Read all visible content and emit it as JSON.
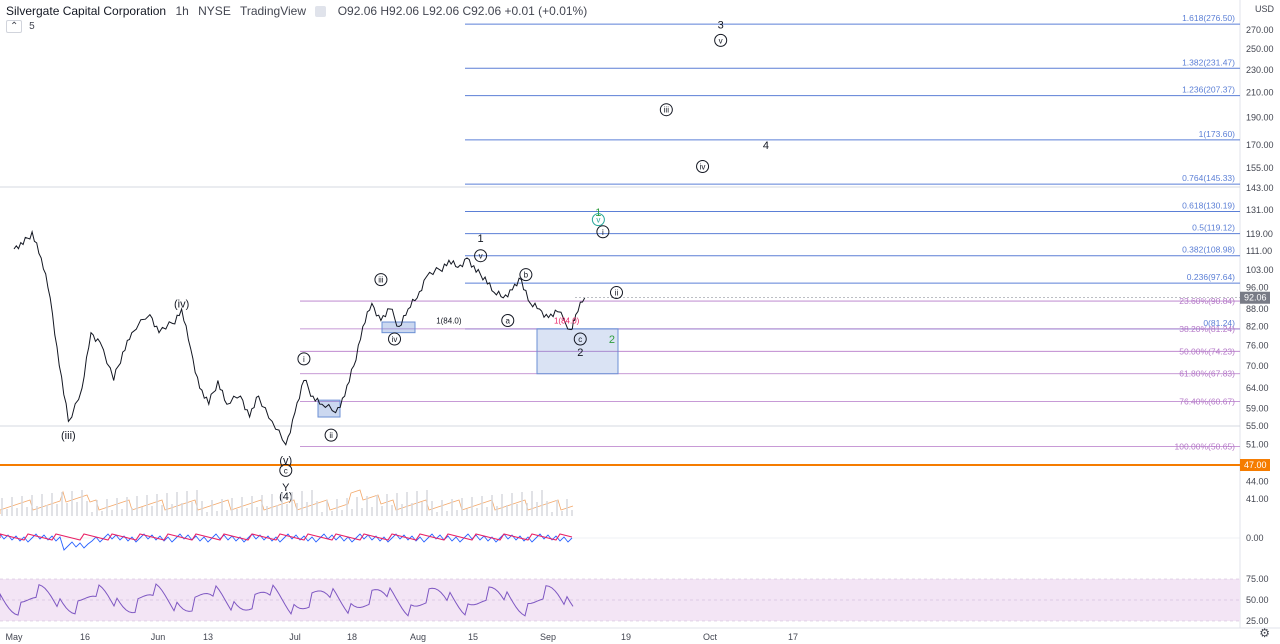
{
  "header": {
    "symbol": "Silvergate Capital Corporation",
    "interval": "1h",
    "exchange": "NYSE",
    "source": "TradingView",
    "ohlc": "O92.06 H92.06 L92.06 C92.06 +0.01 (+0.01%)",
    "indicator_count": "5",
    "currency": "USD"
  },
  "colors": {
    "price": "#131722",
    "fib_blue": "#5b7fd6",
    "fib_purple": "#b579c8",
    "orange": "#f57c00",
    "box": "#6b8fd4",
    "wave_green": "#2e9e3e",
    "wave_teal": "#26a69a",
    "volume": "#f2a86a",
    "indicator_red": "#e91e63",
    "indicator_blue": "#2962ff",
    "rsi": "#7e57c2",
    "rsi_band": "#f3e5f5",
    "price_tag": "#787b86"
  },
  "chart_data": {
    "type": "line",
    "title": "Silvergate Capital Corporation · 1h · NYSE",
    "x_labels": [
      "May",
      "16",
      "Jun",
      "13",
      "Jul",
      "18",
      "Aug",
      "15",
      "Sep",
      "19",
      "Oct",
      "17"
    ],
    "y_ticks": [
      "270.00",
      "250.00",
      "230.00",
      "210.00",
      "190.00",
      "170.00",
      "155.00",
      "143.00",
      "131.00",
      "119.00",
      "111.00",
      "103.00",
      "96.00",
      "88.00",
      "82.00",
      "76.00",
      "70.00",
      "64.00",
      "59.00",
      "55.00",
      "51.00",
      "47.00",
      "44.00",
      "41.00"
    ],
    "y_range": [
      38,
      285
    ],
    "log_scale": true,
    "price_series": [
      {
        "x": "May 1",
        "y": 112
      },
      {
        "x": "May 3",
        "y": 114
      },
      {
        "x": "May 5",
        "y": 120
      },
      {
        "x": "May 7",
        "y": 108
      },
      {
        "x": "May 9",
        "y": 92
      },
      {
        "x": "May 11",
        "y": 70
      },
      {
        "x": "May 13",
        "y": 56
      },
      {
        "x": "May 16",
        "y": 64
      },
      {
        "x": "May 18",
        "y": 80
      },
      {
        "x": "May 20",
        "y": 77
      },
      {
        "x": "May 23",
        "y": 66
      },
      {
        "x": "May 25",
        "y": 74
      },
      {
        "x": "May 27",
        "y": 80
      },
      {
        "x": "May 31",
        "y": 86
      },
      {
        "x": "Jun 2",
        "y": 80
      },
      {
        "x": "Jun 5",
        "y": 83
      },
      {
        "x": "Jun 7",
        "y": 88
      },
      {
        "x": "Jun 9",
        "y": 75
      },
      {
        "x": "Jun 11",
        "y": 64
      },
      {
        "x": "Jun 13",
        "y": 60
      },
      {
        "x": "Jun 15",
        "y": 66
      },
      {
        "x": "Jun 17",
        "y": 60
      },
      {
        "x": "Jun 20",
        "y": 62
      },
      {
        "x": "Jun 22",
        "y": 57
      },
      {
        "x": "Jun 24",
        "y": 62
      },
      {
        "x": "Jun 27",
        "y": 56
      },
      {
        "x": "Jun 30",
        "y": 51
      },
      {
        "x": "Jul 2",
        "y": 58
      },
      {
        "x": "Jul 4",
        "y": 66
      },
      {
        "x": "Jul 6",
        "y": 62
      },
      {
        "x": "Jul 8",
        "y": 60
      },
      {
        "x": "Jul 11",
        "y": 58
      },
      {
        "x": "Jul 13",
        "y": 62
      },
      {
        "x": "Jul 15",
        "y": 70
      },
      {
        "x": "Jul 17",
        "y": 82
      },
      {
        "x": "Jul 19",
        "y": 90
      },
      {
        "x": "Jul 21",
        "y": 84
      },
      {
        "x": "Jul 23",
        "y": 88
      },
      {
        "x": "Jul 25",
        "y": 82
      },
      {
        "x": "Jul 27",
        "y": 88
      },
      {
        "x": "Jul 29",
        "y": 92
      },
      {
        "x": "Jul 31",
        "y": 100
      },
      {
        "x": "Aug 3",
        "y": 103
      },
      {
        "x": "Aug 5",
        "y": 107
      },
      {
        "x": "Aug 7",
        "y": 104
      },
      {
        "x": "Aug 9",
        "y": 108
      },
      {
        "x": "Aug 11",
        "y": 102
      },
      {
        "x": "Aug 13",
        "y": 100
      },
      {
        "x": "Aug 15",
        "y": 94
      },
      {
        "x": "Aug 17",
        "y": 92
      },
      {
        "x": "Aug 19",
        "y": 95
      },
      {
        "x": "Aug 21",
        "y": 99
      },
      {
        "x": "Aug 23",
        "y": 90
      },
      {
        "x": "Aug 25",
        "y": 88
      },
      {
        "x": "Aug 27",
        "y": 85
      },
      {
        "x": "Aug 29",
        "y": 87
      },
      {
        "x": "Sep 1",
        "y": 81
      },
      {
        "x": "Sep 2",
        "y": 86
      },
      {
        "x": "Sep 4",
        "y": 92.06
      }
    ],
    "last_price": "92.06",
    "key_level": "47.00",
    "fib_levels_blue": [
      {
        "label": "1.618(276.50)",
        "value": 276.5
      },
      {
        "label": "1.382(231.47)",
        "value": 231.47
      },
      {
        "label": "1.236(207.37)",
        "value": 207.37
      },
      {
        "label": "1(173.60)",
        "value": 173.6
      },
      {
        "label": "0.764(145.33)",
        "value": 145.33
      },
      {
        "label": "0.618(130.19)",
        "value": 130.19
      },
      {
        "label": "0.5(119.12)",
        "value": 119.12
      },
      {
        "label": "0.382(108.98)",
        "value": 108.98
      },
      {
        "label": "0.236(97.64)",
        "value": 97.64
      },
      {
        "label": "0(81.24)",
        "value": 81.24
      }
    ],
    "fib_levels_purple": [
      {
        "label": "23.60%(90.84)",
        "value": 90.84
      },
      {
        "label": "38.20%(81.24)",
        "value": 81.24
      },
      {
        "label": "50.00%(74.23)",
        "value": 74.23
      },
      {
        "label": "61.80%(67.83)",
        "value": 67.83
      },
      {
        "label": "76.40%(60.67)",
        "value": 60.67
      },
      {
        "label": "100.00%(50.65)",
        "value": 50.65
      }
    ],
    "wave_labels": [
      {
        "text": "3",
        "x": "Oct 4",
        "y": 276,
        "style": "plain"
      },
      {
        "text": "v",
        "x": "Oct 4",
        "y": 259,
        "style": "circle"
      },
      {
        "text": "iii",
        "x": "Sep 22",
        "y": 196,
        "style": "circle"
      },
      {
        "text": "4",
        "x": "Oct 14",
        "y": 170,
        "style": "plain"
      },
      {
        "text": "iv",
        "x": "Sep 30",
        "y": 156,
        "style": "circle"
      },
      {
        "text": "1",
        "x": "Sep 7",
        "y": 130,
        "style": "green"
      },
      {
        "text": "v",
        "x": "Sep 7",
        "y": 126,
        "style": "greencircle"
      },
      {
        "text": "i",
        "x": "Sep 8",
        "y": 120,
        "style": "circle"
      },
      {
        "text": "ii",
        "x": "Sep 11",
        "y": 94,
        "style": "circle"
      },
      {
        "text": "2",
        "x": "Sep 10",
        "y": 78,
        "style": "green"
      },
      {
        "text": "1",
        "x": "Aug 12",
        "y": 117,
        "style": "plain"
      },
      {
        "text": "v",
        "x": "Aug 12",
        "y": 109,
        "style": "circle"
      },
      {
        "text": "b",
        "x": "Aug 22",
        "y": 101,
        "style": "circle"
      },
      {
        "text": "a",
        "x": "Aug 18",
        "y": 84,
        "style": "circle"
      },
      {
        "text": "c",
        "x": "Sep 3",
        "y": 78,
        "style": "circle"
      },
      {
        "text": "2",
        "x": "Sep 3",
        "y": 74,
        "style": "plain"
      },
      {
        "text": "iii",
        "x": "Jul 21",
        "y": 99,
        "style": "circle"
      },
      {
        "text": "iv",
        "x": "Jul 24",
        "y": 78,
        "style": "circle"
      },
      {
        "text": "i",
        "x": "Jul 4",
        "y": 72,
        "style": "circle"
      },
      {
        "text": "ii",
        "x": "Jul 10",
        "y": 53,
        "style": "circle"
      },
      {
        "text": "(iv)",
        "x": "Jun 7",
        "y": 90,
        "style": "plain"
      },
      {
        "text": "(iii)",
        "x": "May 13",
        "y": 53,
        "style": "plain"
      },
      {
        "text": "(v)",
        "x": "Jun 30",
        "y": 48,
        "style": "plain"
      },
      {
        "text": "c",
        "x": "Jun 30",
        "y": 46,
        "style": "circle"
      },
      {
        "text": "Y",
        "x": "Jun 30",
        "y": 43,
        "style": "plain"
      },
      {
        "text": "(4)",
        "x": "Jun 30",
        "y": 41.5,
        "style": "plain"
      }
    ],
    "misc_labels": [
      {
        "text": "1(84.0)",
        "x": "Aug 5",
        "y": 84,
        "color": "#131722"
      },
      {
        "text": "1(84.0)",
        "x": "Aug 31",
        "y": 84,
        "color": "#e91e63"
      }
    ],
    "oscillator_axis": "0.00",
    "rsi_axis": [
      "75.00",
      "50.00",
      "25.00"
    ]
  }
}
